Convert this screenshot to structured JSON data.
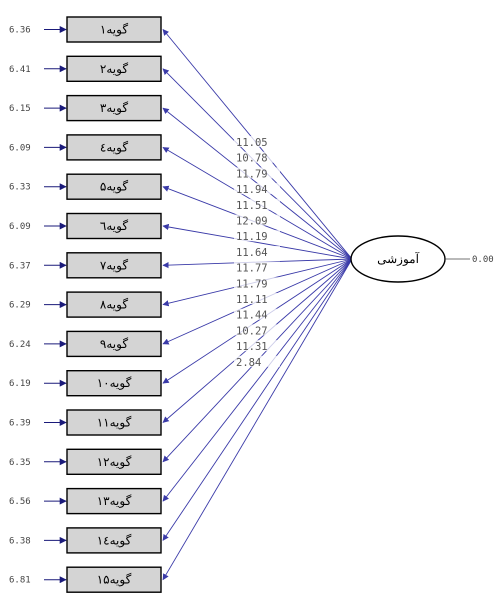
{
  "factor": {
    "label": "آموزشی",
    "variance": "0.00"
  },
  "items": [
    {
      "label": "گویه۱",
      "error_variance": "6.36"
    },
    {
      "label": "گویه۲",
      "error_variance": "6.41"
    },
    {
      "label": "گویه۳",
      "error_variance": "6.15"
    },
    {
      "label": "گویه٤",
      "error_variance": "6.09"
    },
    {
      "label": "گویه۵",
      "error_variance": "6.33"
    },
    {
      "label": "گویه٦",
      "error_variance": "6.09"
    },
    {
      "label": "گویه۷",
      "error_variance": "6.37"
    },
    {
      "label": "گویه۸",
      "error_variance": "6.29"
    },
    {
      "label": "گویه۹",
      "error_variance": "6.24"
    },
    {
      "label": "گویه۱۰",
      "error_variance": "6.19"
    },
    {
      "label": "گویه۱۱",
      "error_variance": "6.39"
    },
    {
      "label": "گویه۱۲",
      "error_variance": "6.35"
    },
    {
      "label": "گویه۱۳",
      "error_variance": "6.56"
    },
    {
      "label": "گویه۱٤",
      "error_variance": "6.38"
    },
    {
      "label": "گویه۱۵",
      "error_variance": "6.81"
    }
  ],
  "loadings": [
    "11.05",
    "10.78",
    "11.79",
    "11.94",
    "11.51",
    "12.09",
    "11.19",
    "11.64",
    "11.77",
    "11.79",
    "11.11",
    "11.44",
    "10.27",
    "11.31",
    "2.84"
  ],
  "colors": {
    "loading_path": "#3a3aa8",
    "error_arrow": "#1a1a7a",
    "box_fill": "#d4d4d4"
  }
}
